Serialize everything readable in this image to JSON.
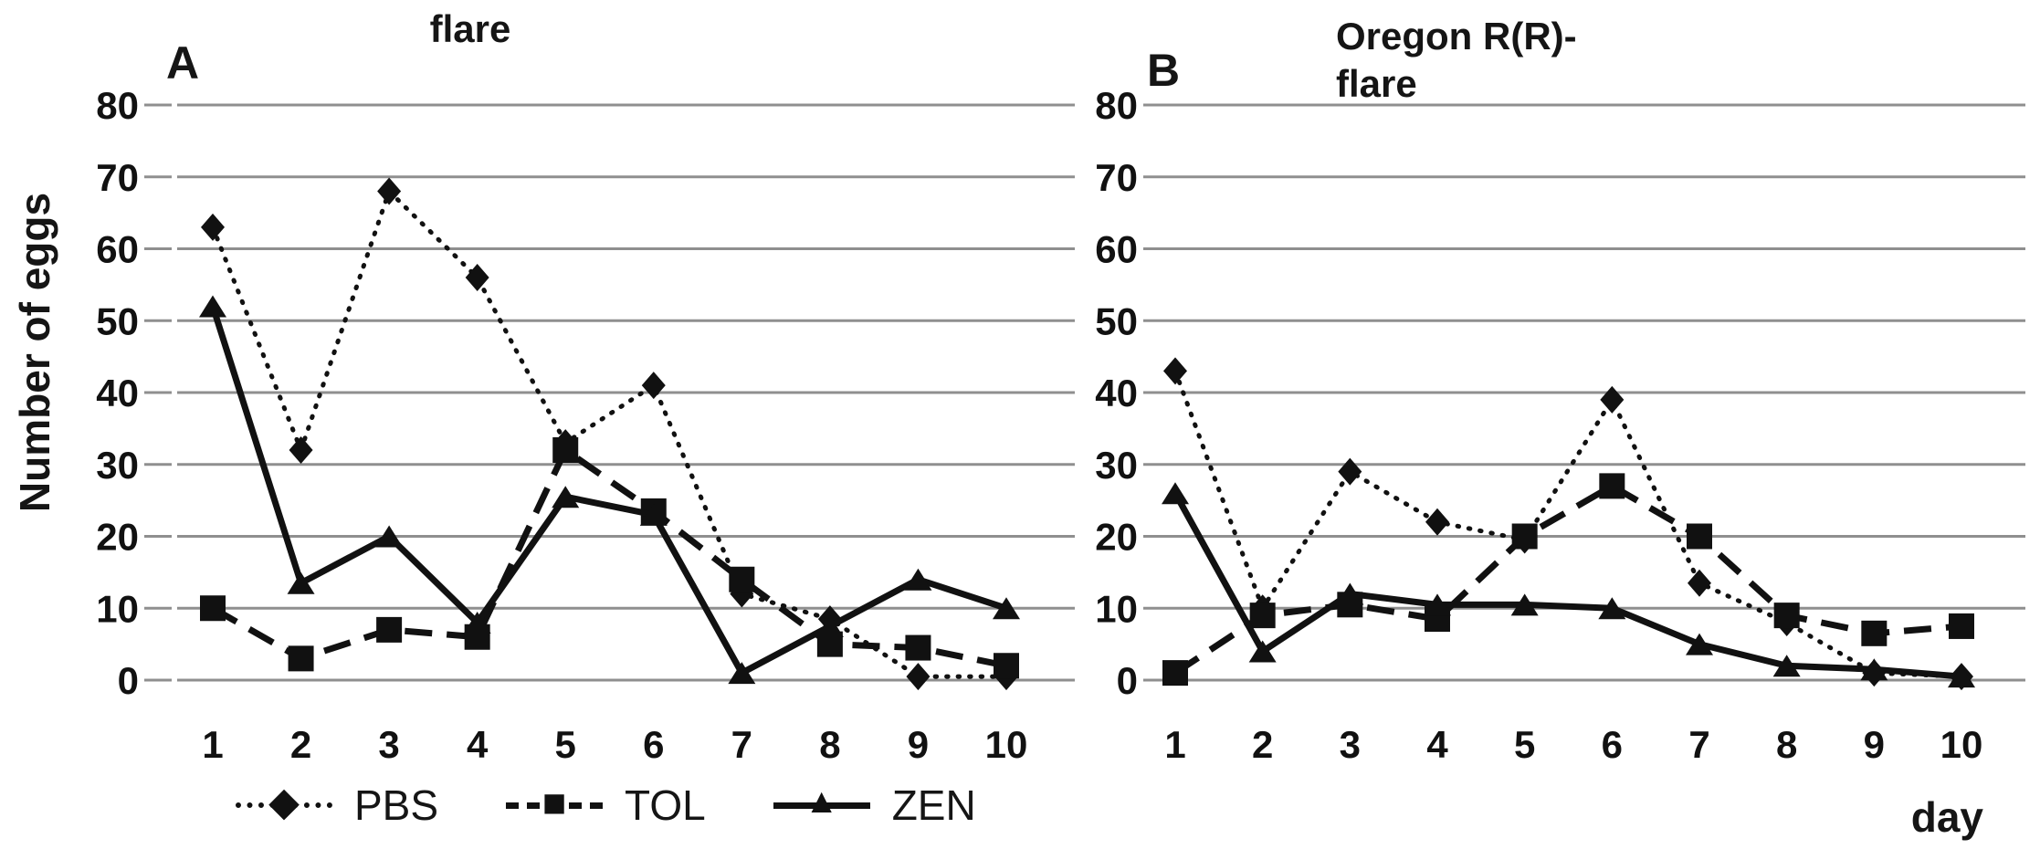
{
  "figure": {
    "y_axis_title": "Number of eggs",
    "x_axis_title": "day",
    "background_color": "#ffffff",
    "ink_color": "#111111",
    "grid_color": "#8f8f8f"
  },
  "legend": {
    "items": [
      {
        "label": "PBS",
        "line_style": "dotted",
        "marker": "diamond",
        "glyph": "◆"
      },
      {
        "label": "TOL",
        "line_style": "dashed",
        "marker": "square",
        "glyph": "■"
      },
      {
        "label": "ZEN",
        "line_style": "solid",
        "marker": "triangle",
        "glyph": "▲"
      }
    ]
  },
  "chart_data": [
    {
      "type": "line",
      "panel_label": "A",
      "title": "flare",
      "title_lines": [
        "flare"
      ],
      "x": [
        1,
        2,
        3,
        4,
        5,
        6,
        7,
        8,
        9,
        10
      ],
      "xlabel": "day",
      "ylabel": "Number of eggs",
      "ylim": [
        0,
        80
      ],
      "yticks": [
        0,
        10,
        20,
        30,
        40,
        50,
        60,
        70,
        80
      ],
      "grid": "horizontal",
      "legend_position": "bottom",
      "series": [
        {
          "name": "PBS",
          "line_style": "dotted",
          "marker": "diamond",
          "values": [
            63,
            32,
            68,
            56,
            33,
            41,
            12,
            8.5,
            0.5,
            0.5
          ]
        },
        {
          "name": "TOL",
          "line_style": "dashed",
          "marker": "square",
          "values": [
            10,
            3,
            7,
            6,
            32,
            23.5,
            14,
            5,
            4.5,
            2
          ]
        },
        {
          "name": "ZEN",
          "line_style": "solid",
          "marker": "triangle",
          "values": [
            52,
            13.5,
            20,
            8,
            25.5,
            23,
            1,
            7.5,
            14,
            10
          ]
        }
      ]
    },
    {
      "type": "line",
      "panel_label": "B",
      "title": "Oregon R(R)-flare",
      "title_lines": [
        "Oregon R(R)-",
        "flare"
      ],
      "x": [
        1,
        2,
        3,
        4,
        5,
        6,
        7,
        8,
        9,
        10
      ],
      "xlabel": "day",
      "ylabel": "Number of eggs",
      "ylim": [
        0,
        80
      ],
      "yticks": [
        0,
        10,
        20,
        30,
        40,
        50,
        60,
        70,
        80
      ],
      "grid": "horizontal",
      "legend_position": "none",
      "series": [
        {
          "name": "PBS",
          "line_style": "dotted",
          "marker": "diamond",
          "values": [
            43,
            10,
            29,
            22,
            19.5,
            39,
            13.5,
            8,
            1,
            0.5
          ]
        },
        {
          "name": "TOL",
          "line_style": "dashed",
          "marker": "square",
          "values": [
            1,
            9,
            10.5,
            8.5,
            20,
            27,
            20,
            9,
            6.5,
            7.5
          ]
        },
        {
          "name": "ZEN",
          "line_style": "solid",
          "marker": "triangle",
          "values": [
            26,
            4,
            12,
            10.5,
            10.5,
            10,
            5,
            2,
            1.5,
            0.5
          ]
        }
      ]
    }
  ]
}
